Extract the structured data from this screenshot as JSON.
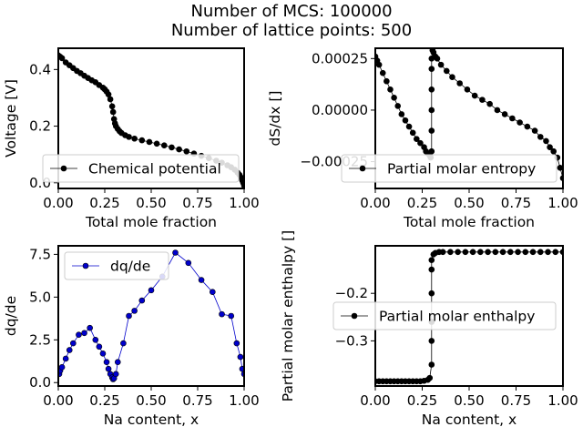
{
  "figure": {
    "title_line1": "Number of MCS: 100000",
    "title_line2": "Number of lattice points: 500"
  },
  "chart_data": [
    {
      "type": "line",
      "xlabel": "Total mole fraction",
      "ylabel": "Voltage [V]",
      "xlim": [
        0,
        1
      ],
      "ylim": [
        -0.02,
        0.475
      ],
      "xticks": [
        0.0,
        0.25,
        0.5,
        0.75,
        1.0
      ],
      "xtick_labels": [
        "0.00",
        "0.25",
        "0.50",
        "0.75",
        "1.00"
      ],
      "yticks": [
        0.0,
        0.2,
        0.4
      ],
      "ytick_labels": [
        "0.0",
        "0.2",
        "0.4"
      ],
      "legend_position": "lower-left",
      "color": "#000000",
      "series": [
        {
          "name": "Chemical potential",
          "x": [
            0.0,
            0.01,
            0.02,
            0.04,
            0.06,
            0.08,
            0.1,
            0.12,
            0.14,
            0.16,
            0.18,
            0.2,
            0.22,
            0.24,
            0.25,
            0.26,
            0.27,
            0.28,
            0.29,
            0.295,
            0.3,
            0.305,
            0.31,
            0.32,
            0.33,
            0.34,
            0.36,
            0.38,
            0.41,
            0.45,
            0.49,
            0.53,
            0.57,
            0.61,
            0.65,
            0.69,
            0.73,
            0.77,
            0.81,
            0.85,
            0.88,
            0.91,
            0.93,
            0.95,
            0.965,
            0.975,
            0.985,
            0.99,
            0.995,
            1.0
          ],
          "y": [
            0.45,
            0.445,
            0.44,
            0.425,
            0.415,
            0.405,
            0.395,
            0.387,
            0.378,
            0.37,
            0.362,
            0.355,
            0.345,
            0.336,
            0.33,
            0.322,
            0.312,
            0.295,
            0.27,
            0.25,
            0.225,
            0.21,
            0.2,
            0.19,
            0.182,
            0.176,
            0.168,
            0.162,
            0.156,
            0.15,
            0.144,
            0.138,
            0.132,
            0.125,
            0.118,
            0.111,
            0.103,
            0.095,
            0.087,
            0.078,
            0.071,
            0.062,
            0.055,
            0.046,
            0.036,
            0.028,
            0.018,
            0.008,
            0.0,
            -0.01
          ]
        }
      ]
    },
    {
      "type": "line",
      "xlabel": "Total mole fraction",
      "ylabel": "dS/dx []",
      "xlim": [
        0,
        1
      ],
      "ylim": [
        -0.00038,
        0.0003
      ],
      "xticks": [
        0.0,
        0.25,
        0.5,
        0.75,
        1.0
      ],
      "xtick_labels": [
        "0.00",
        "0.25",
        "0.50",
        "0.75",
        "1.00"
      ],
      "yticks": [
        -0.00025,
        0.0,
        0.00025
      ],
      "ytick_labels": [
        "−0.00025",
        "0.00000",
        "0.00025"
      ],
      "legend_position": "lower-left",
      "color": "#000000",
      "series": [
        {
          "name": "Partial molar entropy",
          "x": [
            0.0,
            0.01,
            0.02,
            0.04,
            0.06,
            0.08,
            0.1,
            0.12,
            0.14,
            0.16,
            0.18,
            0.2,
            0.22,
            0.24,
            0.26,
            0.27,
            0.28,
            0.29,
            0.295,
            0.3,
            0.3,
            0.3,
            0.3,
            0.3,
            0.3,
            0.305,
            0.31,
            0.32,
            0.33,
            0.35,
            0.38,
            0.41,
            0.45,
            0.49,
            0.53,
            0.57,
            0.61,
            0.65,
            0.69,
            0.73,
            0.77,
            0.81,
            0.85,
            0.88,
            0.91,
            0.93,
            0.95,
            0.97,
            0.985,
            1.0
          ],
          "y": [
            0.00026,
            0.00024,
            0.00022,
            0.00018,
            0.00014,
            0.0001,
            6e-05,
            2e-05,
            -2e-05,
            -5e-05,
            -8e-05,
            -0.00011,
            -0.00014,
            -0.00016,
            -0.00018,
            -0.0002,
            -0.00021,
            -0.00022,
            -0.00023,
            -0.0002,
            -0.0001,
            0.0,
            0.0001,
            0.0002,
            0.00025,
            0.00029,
            0.00028,
            0.00026,
            0.00025,
            0.00022,
            0.00019,
            0.00016,
            0.00013,
            0.0001,
            7e-05,
            5e-05,
            3e-05,
            0.0,
            -2e-05,
            -4e-05,
            -6e-05,
            -8e-05,
            -0.0001,
            -0.00013,
            -0.00015,
            -0.00018,
            -0.0002,
            -0.00023,
            -0.00028,
            -0.00033
          ]
        }
      ]
    },
    {
      "type": "line",
      "xlabel": "Na content, x",
      "ylabel": "dq/de",
      "xlim": [
        0,
        1
      ],
      "ylim": [
        -0.2,
        8.0
      ],
      "xticks": [
        0.0,
        0.25,
        0.5,
        0.75,
        1.0
      ],
      "xtick_labels": [
        "0.00",
        "0.25",
        "0.50",
        "0.75",
        "1.00"
      ],
      "yticks": [
        0.0,
        2.5,
        5.0,
        7.5
      ],
      "ytick_labels": [
        "0.0",
        "2.5",
        "5.0",
        "7.5"
      ],
      "legend_position": "upper-left",
      "color": "#0000cc",
      "series": [
        {
          "name": "dq/de",
          "x": [
            0.005,
            0.01,
            0.02,
            0.04,
            0.06,
            0.08,
            0.11,
            0.14,
            0.17,
            0.2,
            0.22,
            0.24,
            0.26,
            0.27,
            0.28,
            0.29,
            0.295,
            0.3,
            0.31,
            0.32,
            0.35,
            0.38,
            0.41,
            0.45,
            0.5,
            0.56,
            0.63,
            0.7,
            0.77,
            0.83,
            0.88,
            0.93,
            0.96,
            0.98,
            0.99,
            1.0
          ],
          "y": [
            0.5,
            0.7,
            0.9,
            1.4,
            1.9,
            2.3,
            2.8,
            2.9,
            3.2,
            2.5,
            2.1,
            1.7,
            1.2,
            0.8,
            0.5,
            0.3,
            0.2,
            0.25,
            0.5,
            1.2,
            2.3,
            3.9,
            4.2,
            4.8,
            5.4,
            6.2,
            7.6,
            7.0,
            6.0,
            5.3,
            4.0,
            3.9,
            2.3,
            1.5,
            0.8,
            0.5
          ]
        }
      ]
    },
    {
      "type": "line",
      "xlabel": "Na content, x",
      "ylabel": "Partial molar enthalpy []",
      "xlim": [
        0,
        1
      ],
      "ylim": [
        -0.395,
        -0.1
      ],
      "xticks": [
        0.0,
        0.25,
        0.5,
        0.75,
        1.0
      ],
      "xtick_labels": [
        "0.00",
        "0.25",
        "0.50",
        "0.75",
        "1.00"
      ],
      "yticks": [
        -0.3,
        -0.2
      ],
      "ytick_labels": [
        "−0.3",
        "−0.2"
      ],
      "legend_position": "center-left",
      "color": "#000000",
      "series": [
        {
          "name": "Partial molar enthalpy",
          "x": [
            0.0,
            0.02,
            0.04,
            0.06,
            0.08,
            0.1,
            0.12,
            0.14,
            0.16,
            0.18,
            0.2,
            0.22,
            0.24,
            0.26,
            0.28,
            0.29,
            0.3,
            0.3,
            0.3,
            0.3,
            0.3,
            0.3,
            0.31,
            0.32,
            0.34,
            0.36,
            0.4,
            0.44,
            0.48,
            0.52,
            0.56,
            0.6,
            0.64,
            0.68,
            0.72,
            0.76,
            0.8,
            0.84,
            0.88,
            0.92,
            0.96,
            1.0
          ],
          "y": [
            -0.385,
            -0.385,
            -0.385,
            -0.385,
            -0.385,
            -0.385,
            -0.385,
            -0.385,
            -0.385,
            -0.385,
            -0.385,
            -0.385,
            -0.385,
            -0.384,
            -0.382,
            -0.378,
            -0.35,
            -0.3,
            -0.26,
            -0.2,
            -0.15,
            -0.13,
            -0.118,
            -0.115,
            -0.113,
            -0.113,
            -0.113,
            -0.113,
            -0.113,
            -0.113,
            -0.113,
            -0.113,
            -0.113,
            -0.113,
            -0.113,
            -0.113,
            -0.113,
            -0.113,
            -0.113,
            -0.113,
            -0.113,
            -0.113
          ]
        }
      ]
    }
  ]
}
